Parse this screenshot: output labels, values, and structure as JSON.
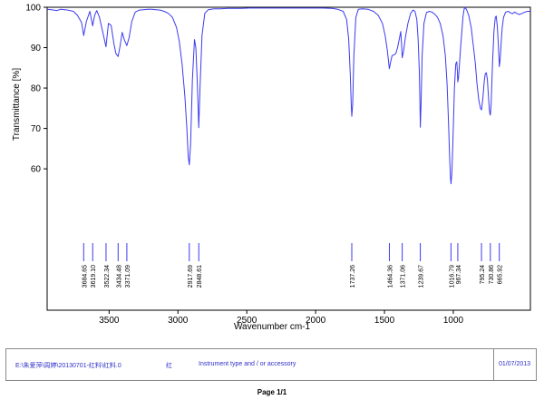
{
  "chart_data": {
    "type": "line",
    "title": "",
    "xlabel": "Wavenumber cm-1",
    "ylabel": "Transmittance [%]",
    "xlim": [
      3950,
      440
    ],
    "ylim": [
      25,
      100
    ],
    "x_ticks": [
      3500,
      3000,
      2500,
      2000,
      1500,
      1000
    ],
    "x_tick_labels": [
      "3500",
      "3000",
      "2500",
      "2000",
      "1500",
      "1000"
    ],
    "y_ticks": [
      60,
      70,
      80,
      90,
      100
    ],
    "y_tick_labels": [
      "60",
      "70",
      "80",
      "90",
      "100"
    ],
    "grid": false,
    "series": [
      {
        "color": "#3b3bf0",
        "x": [
          3950,
          3920,
          3880,
          3850,
          3800,
          3760,
          3730,
          3700,
          3684.65,
          3665,
          3640,
          3619.1,
          3605,
          3590,
          3570,
          3550,
          3522.34,
          3505,
          3485,
          3465,
          3450,
          3434.48,
          3420,
          3405,
          3390,
          3371.09,
          3355,
          3335,
          3310,
          3280,
          3250,
          3220,
          3190,
          3160,
          3130,
          3100,
          3070,
          3040,
          3010,
          2990,
          2970,
          2950,
          2935,
          2925,
          2917.69,
          2908,
          2895,
          2880,
          2870,
          2860,
          2852,
          2848.61,
          2840,
          2825,
          2805,
          2780,
          2740,
          2690,
          2640,
          2590,
          2540,
          2480,
          2420,
          2340,
          2260,
          2180,
          2100,
          2020,
          1950,
          1880,
          1840,
          1800,
          1775,
          1760,
          1748,
          1742,
          1737.26,
          1731,
          1722,
          1708,
          1690,
          1660,
          1620,
          1580,
          1545,
          1515,
          1495,
          1480,
          1470,
          1464.36,
          1455,
          1445,
          1432,
          1418,
          1405,
          1393,
          1382,
          1375,
          1371.06,
          1362,
          1348,
          1330,
          1310,
          1292,
          1278,
          1265,
          1255,
          1247,
          1242,
          1239.67,
          1234,
          1226,
          1213,
          1195,
          1175,
          1155,
          1135,
          1115,
          1095,
          1075,
          1058,
          1045,
          1035,
          1027,
          1021,
          1016.79,
          1010,
          1002,
          992,
          982,
          975,
          970,
          967.34,
          962,
          955,
          947,
          938,
          930,
          924,
          918,
          905,
          888,
          870,
          853,
          840,
          828,
          815,
          803,
          795.24,
          785,
          776,
          768,
          760,
          752,
          745,
          739,
          734,
          730.86,
          725,
          715,
          705,
          695,
          688,
          680,
          672,
          667,
          665.92,
          660,
          653,
          645,
          635,
          620,
          600,
          585,
          570,
          555,
          540,
          520,
          500,
          480,
          460,
          440
        ],
        "y": [
          99.5,
          99.4,
          99.2,
          99.5,
          99.3,
          99.0,
          98.0,
          96.2,
          93.0,
          96.5,
          99.0,
          95.4,
          98.0,
          99.2,
          97.5,
          94.5,
          90.2,
          96.0,
          95.5,
          91.0,
          88.5,
          87.8,
          90.5,
          93.8,
          92.0,
          90.5,
          92.5,
          96.5,
          98.8,
          99.3,
          99.4,
          99.5,
          99.5,
          99.4,
          99.3,
          99.0,
          98.5,
          97.5,
          95.0,
          91.5,
          86.0,
          78.0,
          70.0,
          63.0,
          61.0,
          66.0,
          82.0,
          92.0,
          90.0,
          82.0,
          74.0,
          70.2,
          80.0,
          93.0,
          98.5,
          99.4,
          99.6,
          99.6,
          99.7,
          99.7,
          99.7,
          99.8,
          99.8,
          99.8,
          99.8,
          99.8,
          99.8,
          99.8,
          99.8,
          99.7,
          99.5,
          99.0,
          97.0,
          92.0,
          83.0,
          76.5,
          73.0,
          76.0,
          88.0,
          97.5,
          99.5,
          99.6,
          99.5,
          99.0,
          98.0,
          96.0,
          93.0,
          89.5,
          86.5,
          84.8,
          86.5,
          88.0,
          88.2,
          88.5,
          90.0,
          92.0,
          94.0,
          90.5,
          87.5,
          89.0,
          92.5,
          96.0,
          98.5,
          99.3,
          99.0,
          97.0,
          92.0,
          84.0,
          76.0,
          70.3,
          76.0,
          88.0,
          96.0,
          98.7,
          99.0,
          98.8,
          98.3,
          97.5,
          96.0,
          93.0,
          88.0,
          81.0,
          72.0,
          63.0,
          58.0,
          56.3,
          59.0,
          68.0,
          80.0,
          86.0,
          86.5,
          84.0,
          81.5,
          82.5,
          86.0,
          90.0,
          94.0,
          97.5,
          99.0,
          100.0,
          99.5,
          98.0,
          95.0,
          90.0,
          86.0,
          81.0,
          77.0,
          75.0,
          74.6,
          77.5,
          81.5,
          83.5,
          83.8,
          82.0,
          78.0,
          75.0,
          73.5,
          73.3,
          76.0,
          86.0,
          94.0,
          97.5,
          97.8,
          95.0,
          90.0,
          86.5,
          85.3,
          87.0,
          91.0,
          95.0,
          97.5,
          98.8,
          99.0,
          98.6,
          98.4,
          98.8,
          98.5,
          98.2,
          98.5,
          98.8,
          99.0,
          99.0
        ]
      }
    ],
    "peak_labels": [
      "3684.65",
      "3619.10",
      "3522.34",
      "3434.48",
      "3371.09",
      "2917.69",
      "2848.61",
      "1737.26",
      "1464.36",
      "1371.06",
      "1239.67",
      "1016.79",
      "967.34",
      "795.24",
      "730.86",
      "665.92"
    ],
    "peak_positions": [
      3684.65,
      3619.1,
      3522.34,
      3434.48,
      3371.09,
      2917.69,
      2848.61,
      1737.26,
      1464.36,
      1371.06,
      1239.67,
      1016.79,
      967.34,
      795.24,
      730.86,
      665.92
    ]
  },
  "colors": {
    "spectrum": "#3b3bf0",
    "peak_marker": "#3b3bf0",
    "footer_text": "#2f2fc8"
  },
  "footer": {
    "file_path": "E:\\朱爱萍\\周婷\\20130701-红料\\红料.0",
    "sample_name": "红",
    "instrument": "Instrument type and / or accessory",
    "date": "01/07/2013"
  },
  "page_label": "Page 1/1"
}
